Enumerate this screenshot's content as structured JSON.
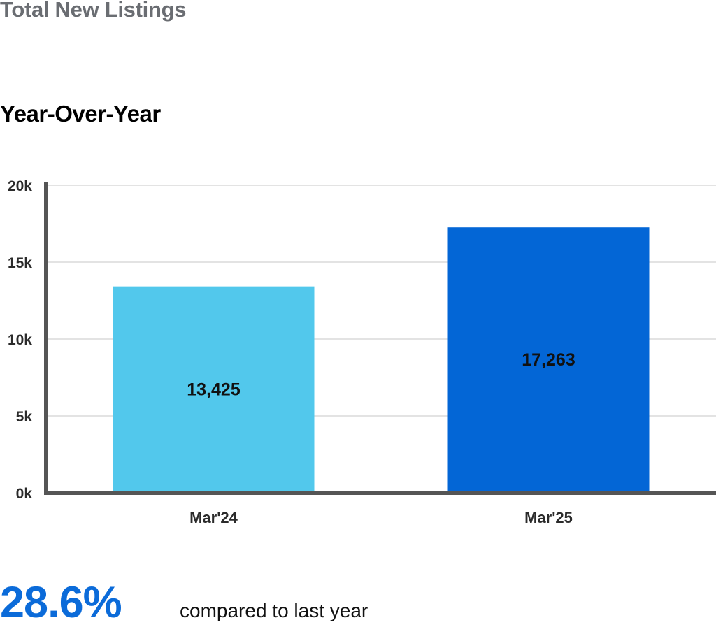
{
  "header": {
    "title": "Total New Listings",
    "subtitle": "Year-Over-Year"
  },
  "summary": {
    "percent": "28.6%",
    "text": "compared to last year"
  },
  "colors": {
    "bar_prev": "#52c8ec",
    "bar_curr": "#0366d6",
    "accent": "#0b6bd9",
    "grid": "#e3e3e3",
    "axis": "#555555"
  },
  "chart_data": {
    "type": "bar",
    "categories": [
      "Mar'24",
      "Mar'25"
    ],
    "values": [
      13425,
      17263
    ],
    "value_labels": [
      "13,425",
      "17,263"
    ],
    "bar_colors": [
      "#52c8ec",
      "#0366d6"
    ],
    "title": "",
    "xlabel": "",
    "ylabel": "",
    "ylim": [
      0,
      20000
    ],
    "yticks": [
      0,
      5000,
      10000,
      15000,
      20000
    ],
    "ytick_labels": [
      "0k",
      "5k",
      "10k",
      "15k",
      "20k"
    ],
    "grid": true,
    "legend": "none"
  }
}
